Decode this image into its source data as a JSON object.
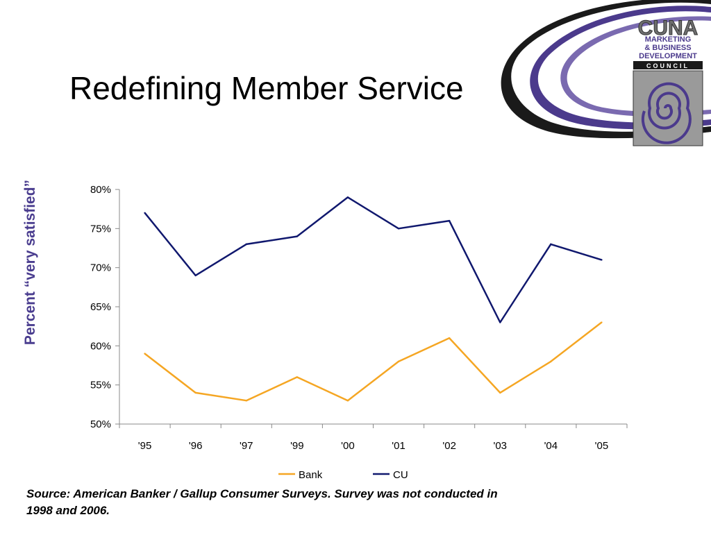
{
  "slide": {
    "title": "Redefining Member Service",
    "source_note": "Source: American Banker / Gallup Consumer Surveys. Survey was not conducted in 1998 and 2006."
  },
  "logo": {
    "line1": "CUNA",
    "line2": "MARKETING",
    "line3": "& BUSINESS",
    "line4": "DEVELOPMENT",
    "line5": "COUNCIL",
    "colors": {
      "purple": "#4b3a8c",
      "gray": "#6e6e6e",
      "light_gray": "#cfcfcf"
    }
  },
  "chart_data": {
    "type": "line",
    "title": "",
    "xlabel": "",
    "ylabel": "Percent “very satisfied”",
    "categories": [
      "'95",
      "'96",
      "'97",
      "'99",
      "'00",
      "'01",
      "'02",
      "'03",
      "'04",
      "'05"
    ],
    "series": [
      {
        "name": "Bank",
        "color": "#f5a623",
        "values": [
          59,
          54,
          53,
          56,
          53,
          58,
          61,
          54,
          58,
          63
        ]
      },
      {
        "name": "CU",
        "color": "#10186e",
        "values": [
          77,
          69,
          73,
          74,
          79,
          75,
          76,
          63,
          73,
          71
        ]
      }
    ],
    "ylim": [
      50,
      80
    ],
    "yticks": [
      "50%",
      "55%",
      "60%",
      "65%",
      "70%",
      "75%",
      "80%"
    ],
    "ytick_values": [
      50,
      55,
      60,
      65,
      70,
      75,
      80
    ],
    "grid": false,
    "legend_position": "bottom"
  }
}
